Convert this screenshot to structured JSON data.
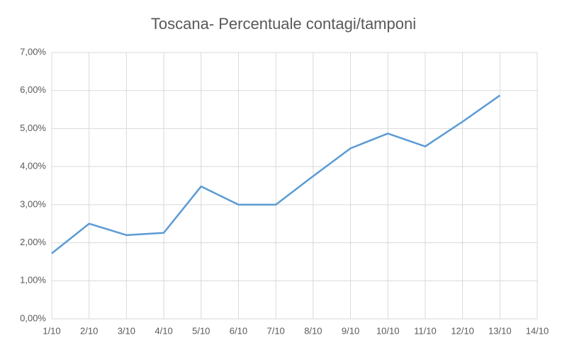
{
  "chart_data": {
    "type": "line",
    "title": "Toscana- Percentuale contagi/tamponi",
    "categories": [
      "1/10",
      "2/10",
      "3/10",
      "4/10",
      "5/10",
      "6/10",
      "7/10",
      "8/10",
      "9/10",
      "10/10",
      "11/10",
      "12/10",
      "13/10",
      "14/10"
    ],
    "series": [
      {
        "color": "#5b9bd5",
        "values": [
          1.72,
          2.5,
          2.2,
          2.26,
          3.48,
          3.0,
          3.0,
          3.75,
          4.48,
          4.87,
          4.53,
          5.18,
          5.87,
          null
        ]
      }
    ],
    "ylim": [
      0,
      7
    ],
    "yticks": [
      {
        "value": 0,
        "label": "0,00%"
      },
      {
        "value": 1,
        "label": "1,00%"
      },
      {
        "value": 2,
        "label": "2,00%"
      },
      {
        "value": 3,
        "label": "3,00%"
      },
      {
        "value": 4,
        "label": "4,00%"
      },
      {
        "value": 5,
        "label": "5,00%"
      },
      {
        "value": 6,
        "label": "6,00%"
      },
      {
        "value": 7,
        "label": "7,00%"
      }
    ],
    "grid": true
  }
}
